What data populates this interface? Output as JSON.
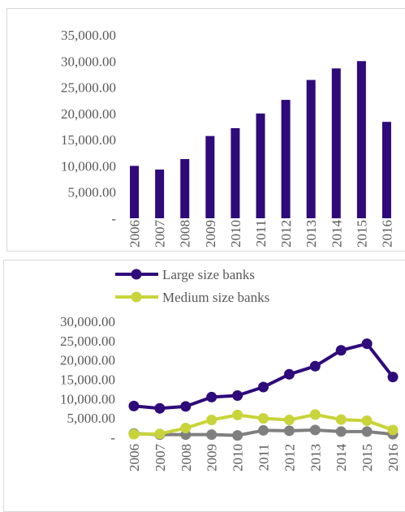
{
  "chart_data": [
    {
      "type": "bar",
      "categories": [
        "2006",
        "2007",
        "2008",
        "2009",
        "2010",
        "2011",
        "2012",
        "2013",
        "2014",
        "2015",
        "2016"
      ],
      "values": [
        10000,
        9300,
        11300,
        15700,
        17200,
        20000,
        22600,
        26400,
        28600,
        30000,
        18400
      ],
      "ytick_labels": [
        "-",
        "5,000.00",
        "10,000.00",
        "15,000.00",
        "20,000.00",
        "25,000.00",
        "30,000.00",
        "35,000.00"
      ],
      "ylim": [
        0,
        35000
      ],
      "color": "#2e0a7a",
      "grid": false,
      "title": "",
      "xlabel": "",
      "ylabel": ""
    },
    {
      "type": "line",
      "categories": [
        "2006",
        "2007",
        "2008",
        "2009",
        "2010",
        "2011",
        "2012",
        "2013",
        "2014",
        "2015",
        "2016"
      ],
      "series": [
        {
          "name": "Large size banks",
          "color": "#2e0a7a",
          "values": [
            8100,
            7500,
            8000,
            10400,
            10800,
            13000,
            16300,
            18400,
            22500,
            24200,
            15600
          ]
        },
        {
          "name": "Medium size banks",
          "color": "#c8d43a",
          "values": [
            800,
            900,
            2400,
            4500,
            5800,
            4900,
            4500,
            5900,
            4600,
            4300,
            1900
          ]
        },
        {
          "name": "",
          "color": "#7f7f7f",
          "values": [
            1000,
            700,
            700,
            700,
            500,
            1800,
            1700,
            1900,
            1500,
            1500,
            800
          ]
        }
      ],
      "ytick_labels": [
        "-",
        "5,000.00",
        "10,000.00",
        "15,000.00",
        "20,000.00",
        "25,000.00",
        "30,000.00"
      ],
      "ylim": [
        0,
        30000
      ],
      "legend_position": "top",
      "grid": false,
      "title": "",
      "xlabel": "",
      "ylabel": ""
    }
  ]
}
